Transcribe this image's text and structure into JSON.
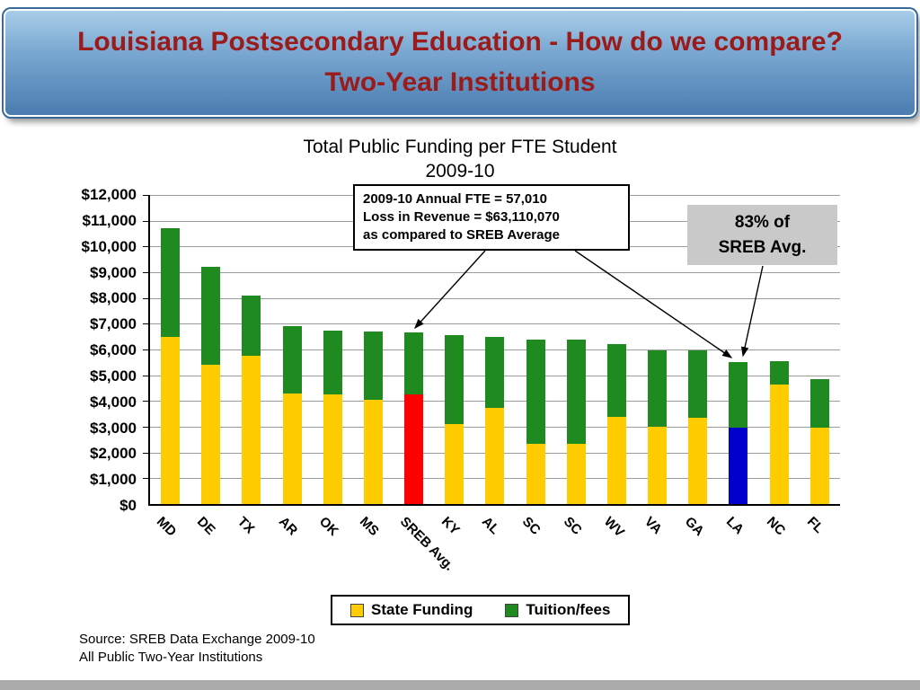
{
  "header": {
    "title_line1": "Louisiana Postsecondary Education  - How do we compare?",
    "title_line2": "Two-Year Institutions"
  },
  "chart": {
    "title_line1": "Total Public Funding per FTE Student",
    "title_line2": "2009-10",
    "annotation": {
      "line1": "2009-10 Annual FTE = 57,010",
      "line2": "Loss in Revenue = $63,110,070",
      "line3": "as compared to SREB Average"
    },
    "callout": {
      "line1": "83% of",
      "line2": "SREB Avg."
    },
    "legend": [
      {
        "label": "State Funding",
        "color": "#FFCC00"
      },
      {
        "label": "Tuition/fees",
        "color": "#1F8A1F"
      }
    ]
  },
  "chart_data": {
    "type": "bar",
    "stacked": true,
    "title": "Total Public Funding per FTE Student 2009-10",
    "xlabel": "",
    "ylabel": "",
    "ylim": [
      0,
      12000
    ],
    "grid": "horizontal",
    "legend_position": "bottom",
    "categories": [
      "MD",
      "DE",
      "TX",
      "AR",
      "OK",
      "MS",
      "SREB Avg.",
      "KY",
      "AL",
      "SC",
      "SC",
      "WV",
      "VA",
      "GA",
      "LA",
      "NC",
      "FL"
    ],
    "series": [
      {
        "name": "State Funding",
        "values": [
          6500,
          5400,
          5750,
          4300,
          4250,
          4050,
          4250,
          3100,
          3750,
          2350,
          2350,
          3400,
          3000,
          3350,
          2950,
          4650,
          2950
        ]
      },
      {
        "name": "Tuition/fees",
        "values": [
          4200,
          3800,
          2350,
          2600,
          2500,
          2650,
          2400,
          3450,
          2750,
          4050,
          4050,
          2800,
          2950,
          2600,
          2550,
          900,
          1900
        ]
      }
    ],
    "bottom_color_overrides": {
      "6": "#FF0000",
      "14": "#0000CC"
    },
    "y_ticks": [
      "$12,000",
      "$11,000",
      "$10,000",
      "$9,000",
      "$8,000",
      "$7,000",
      "$6,000",
      "$5,000",
      "$4,000",
      "$3,000",
      "$2,000",
      "$1,000",
      "$0"
    ]
  },
  "colors": {
    "title_text": "#9B1B1B",
    "state_funding": "#FFCC00",
    "tuition_fees": "#1F8A1F",
    "sreb_avg_bar": "#FF0000",
    "la_bar": "#0000CC",
    "callout_bg": "#C9C9C9"
  },
  "footer": {
    "source_line1": "Source: SREB Data Exchange 2009-10",
    "source_line2": "All Public Two-Year Institutions"
  }
}
